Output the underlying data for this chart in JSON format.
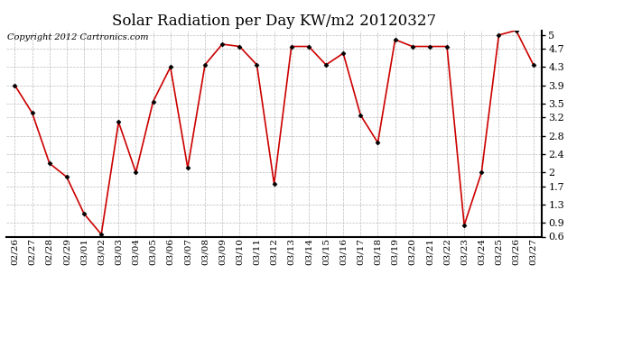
{
  "title": "Solar Radiation per Day KW/m2 20120327",
  "copyright_text": "Copyright 2012 Cartronics.com",
  "dates": [
    "02/26",
    "02/27",
    "02/28",
    "02/29",
    "03/01",
    "03/02",
    "03/03",
    "03/04",
    "03/05",
    "03/06",
    "03/07",
    "03/08",
    "03/09",
    "03/10",
    "03/11",
    "03/12",
    "03/13",
    "03/14",
    "03/15",
    "03/16",
    "03/17",
    "03/18",
    "03/19",
    "03/20",
    "03/21",
    "03/22",
    "03/23",
    "03/24",
    "03/25",
    "03/26",
    "03/27"
  ],
  "values": [
    3.9,
    3.3,
    2.2,
    1.9,
    1.1,
    0.65,
    3.1,
    2.0,
    3.55,
    4.3,
    2.1,
    4.35,
    4.8,
    4.75,
    4.35,
    1.75,
    4.75,
    4.75,
    4.35,
    4.6,
    3.25,
    2.65,
    4.9,
    4.75,
    4.75,
    4.75,
    0.85,
    2.0,
    5.0,
    5.1,
    4.35
  ],
  "line_color": "#cc0000",
  "marker_color": "#000000",
  "bg_color": "#ffffff",
  "grid_color": "#bbbbbb",
  "ylim_min": 0.6,
  "ylim_max": 5.1,
  "yticks": [
    0.6,
    0.9,
    1.3,
    1.7,
    2.0,
    2.4,
    2.8,
    3.2,
    3.5,
    3.9,
    4.3,
    4.7,
    5.0
  ],
  "title_fontsize": 12,
  "copyright_fontsize": 7,
  "tick_fontsize": 7.5
}
